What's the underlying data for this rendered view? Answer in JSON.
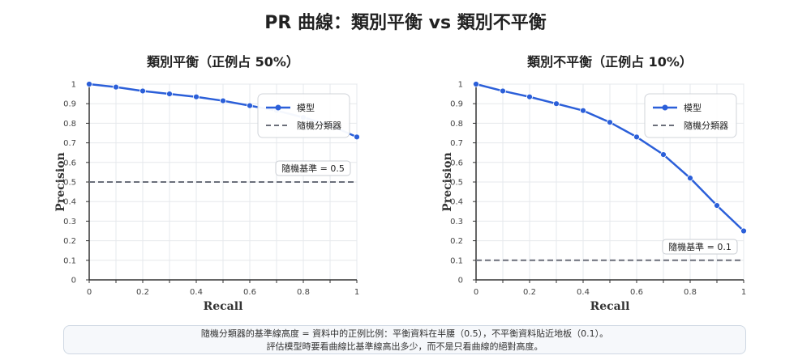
{
  "title": "PR 曲線：類別平衡 vs 類別不平衡",
  "caption": {
    "line1": "隨機分類器的基準線高度 = 資料中的正例比例：平衡資料在半腰（0.5），不平衡資料貼近地板（0.1）。",
    "line2": "評估模型時要看曲線比基準線高出多少，而不是只看曲線的絕對高度。"
  },
  "colors": {
    "model": "#2b5fd9",
    "baseline": "#6b6f7a",
    "grid": "#e6e8ec",
    "axis": "#333333"
  },
  "chart_data": [
    {
      "type": "line",
      "title": "類別平衡（正例占 50%）",
      "xlabel": "Recall",
      "ylabel": "Precision",
      "xlim": [
        0,
        1
      ],
      "ylim": [
        0,
        1
      ],
      "xticks": [
        "0",
        "0.2",
        "0.4",
        "0.6",
        "0.8",
        "1"
      ],
      "yticks": [
        "0",
        "0.1",
        "0.2",
        "0.3",
        "0.4",
        "0.5",
        "0.6",
        "0.7",
        "0.8",
        "0.9",
        "1"
      ],
      "grid": true,
      "legend_position": "top-right",
      "series": [
        {
          "name": "模型",
          "x": [
            0,
            0.1,
            0.2,
            0.3,
            0.4,
            0.5,
            0.6,
            0.7,
            0.8,
            0.9,
            1.0
          ],
          "y": [
            1.0,
            0.985,
            0.965,
            0.95,
            0.935,
            0.915,
            0.89,
            0.865,
            0.83,
            0.79,
            0.73
          ]
        },
        {
          "name": "隨機分類器",
          "style": "dashed",
          "y_const": 0.5
        }
      ],
      "annotation": {
        "text": "隨機基準 = 0.5"
      }
    },
    {
      "type": "line",
      "title": "類別不平衡（正例占 10%）",
      "xlabel": "Recall",
      "ylabel": "Precision",
      "xlim": [
        0,
        1
      ],
      "ylim": [
        0,
        1
      ],
      "xticks": [
        "0",
        "0.2",
        "0.4",
        "0.6",
        "0.8",
        "1"
      ],
      "yticks": [
        "0",
        "0.1",
        "0.2",
        "0.3",
        "0.4",
        "0.5",
        "0.6",
        "0.7",
        "0.8",
        "0.9",
        "1"
      ],
      "grid": true,
      "legend_position": "top-right",
      "series": [
        {
          "name": "模型",
          "x": [
            0,
            0.1,
            0.2,
            0.3,
            0.4,
            0.5,
            0.6,
            0.7,
            0.8,
            0.9,
            1.0
          ],
          "y": [
            1.0,
            0.965,
            0.935,
            0.9,
            0.865,
            0.805,
            0.73,
            0.64,
            0.52,
            0.38,
            0.25
          ]
        },
        {
          "name": "隨機分類器",
          "style": "dashed",
          "y_const": 0.1
        }
      ],
      "annotation": {
        "text": "隨機基準 = 0.1"
      }
    }
  ]
}
